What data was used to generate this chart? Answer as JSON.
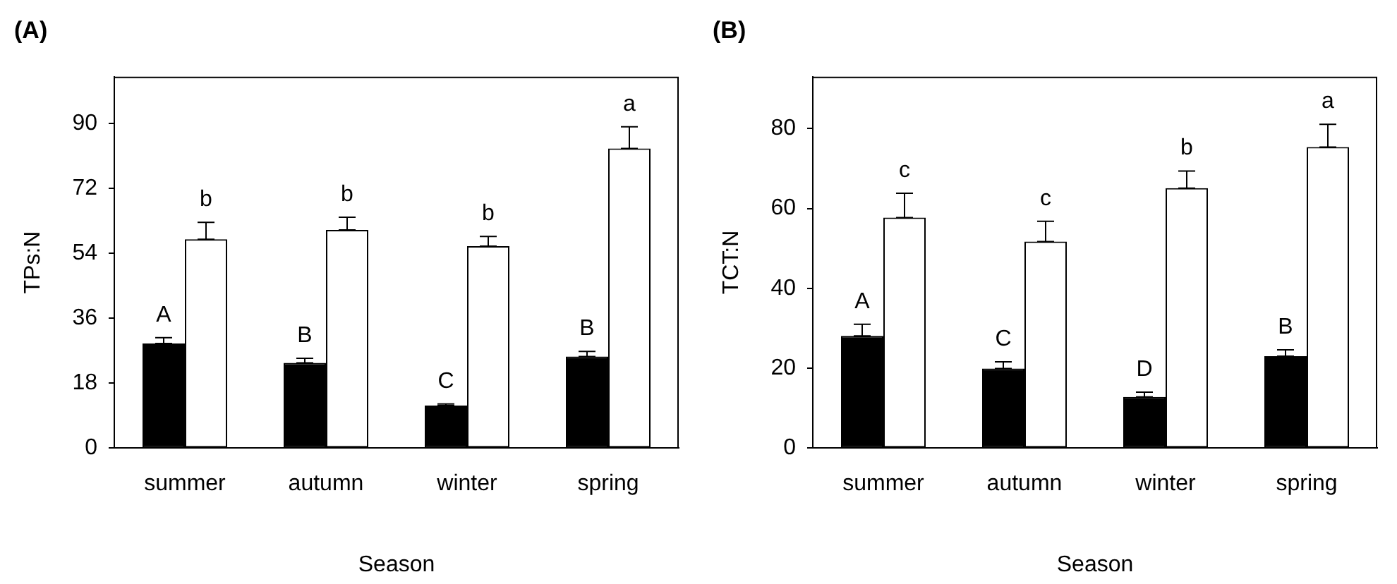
{
  "chart_data": [
    {
      "type": "bar",
      "title": "(A)",
      "xlabel": "Season",
      "ylabel": "TPs:N",
      "categories": [
        "summer",
        "autumn",
        "winter",
        "spring"
      ],
      "series": [
        {
          "color": "#000000",
          "values": [
            29.0,
            23.6,
            11.8,
            25.4
          ],
          "errors": [
            [
              29.0,
              30.6
            ],
            [
              23.6,
              24.9
            ],
            [
              11.8,
              12.2
            ],
            [
              25.4,
              26.8
            ]
          ]
        },
        {
          "color": "#ffffff",
          "values": [
            57.9,
            60.5,
            56.0,
            83.1
          ],
          "errors": [
            [
              57.9,
              62.6
            ],
            [
              60.5,
              64.0
            ],
            [
              56.0,
              58.7
            ],
            [
              83.1,
              89.1
            ]
          ]
        }
      ],
      "ylim": [
        0,
        103
      ],
      "yticks": [
        0,
        18,
        36,
        54,
        72,
        90
      ],
      "grid": false,
      "legend": false,
      "annotations": [
        "A",
        "b",
        "B",
        "b",
        "C",
        "b",
        "B",
        "a"
      ]
    },
    {
      "type": "bar",
      "title": "(B)",
      "xlabel": "Season",
      "ylabel": "TCT:N",
      "categories": [
        "summer",
        "autumn",
        "winter",
        "spring"
      ],
      "series": [
        {
          "color": "#000000",
          "values": [
            28.1,
            19.9,
            12.8,
            23.0
          ],
          "errors": [
            [
              28.1,
              31.0
            ],
            [
              19.9,
              21.6
            ],
            [
              12.8,
              14.0
            ],
            [
              23.0,
              24.6
            ]
          ]
        },
        {
          "color": "#ffffff",
          "values": [
            57.7,
            51.7,
            65.1,
            75.4
          ],
          "errors": [
            [
              57.7,
              63.8
            ],
            [
              51.7,
              56.8
            ],
            [
              65.1,
              69.4
            ],
            [
              75.4,
              81.1
            ]
          ]
        }
      ],
      "ylim": [
        0,
        93
      ],
      "yticks": [
        0,
        20,
        40,
        60,
        80
      ],
      "grid": false,
      "legend": false,
      "annotations": [
        "A",
        "c",
        "C",
        "c",
        "D",
        "b",
        "B",
        "a"
      ]
    }
  ]
}
